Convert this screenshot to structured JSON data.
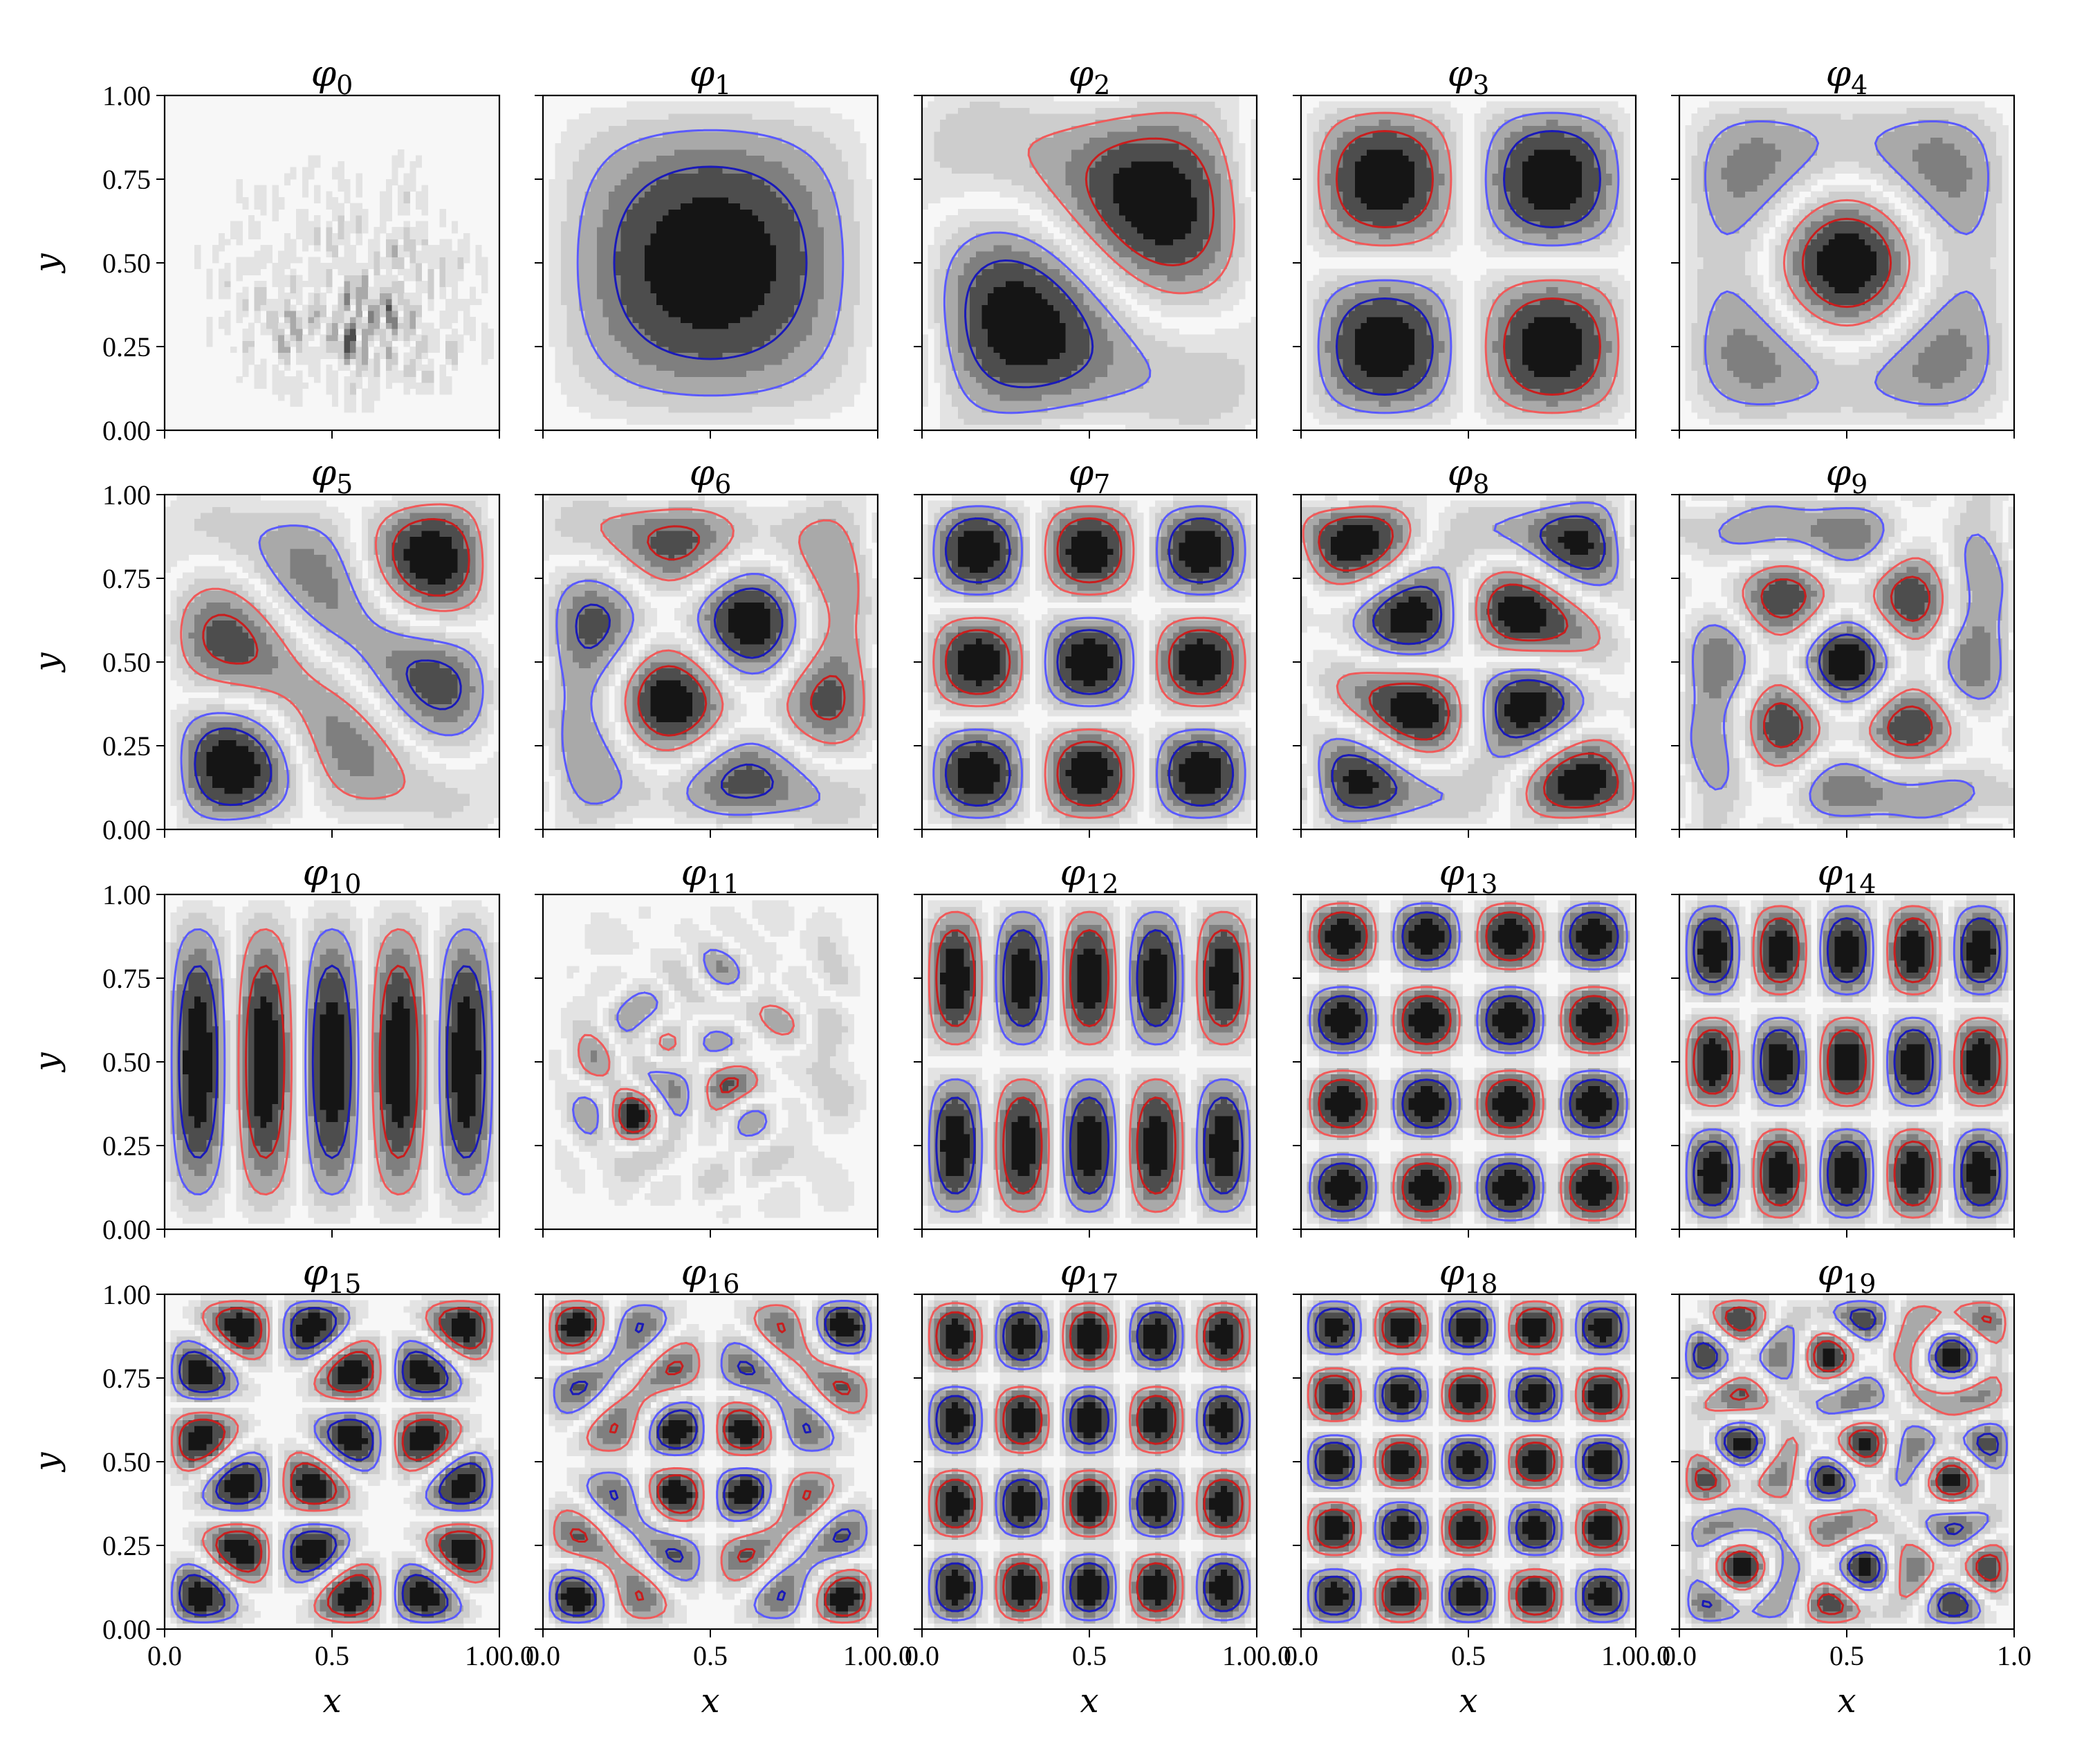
{
  "chart_data": {
    "type": "heatmap",
    "layout": {
      "rows": 4,
      "cols": 5,
      "sharex": true,
      "sharey": true
    },
    "axes": {
      "xlabel": "x",
      "ylabel": "y",
      "xlim": [
        0,
        1
      ],
      "ylim": [
        0,
        1
      ],
      "xticks": [
        0.0,
        0.5,
        1.0
      ],
      "yticks": [
        0.0,
        0.25,
        0.5,
        0.75,
        1.0
      ],
      "xtick_labels_inner": [
        "0.0",
        "0.5",
        "1.00.0"
      ],
      "xtick_labels_last": [
        "0.0",
        "0.5",
        "1.0"
      ],
      "ytick_labels": [
        "0.00",
        "0.25",
        "0.50",
        "0.75",
        "1.00"
      ]
    },
    "colors": {
      "fill_levels": [
        "#f7f7f7",
        "#e3e3e3",
        "#cdcdcd",
        "#a9a9a9",
        "#7f7f7f",
        "#4d4d4d",
        "#151515"
      ],
      "positive_outer": "#5a5aff",
      "positive_inner": "#1a1ab8",
      "negative_outer": "#f05a5a",
      "negative_inner": "#c81e1e"
    },
    "panels": [
      {
        "title": "φ",
        "index": "0",
        "mode": "noise"
      },
      {
        "title": "φ",
        "index": "1",
        "mode": "sine",
        "m": 1,
        "n": 1
      },
      {
        "title": "φ",
        "index": "2",
        "mode": "sine",
        "m": 1,
        "n": 2,
        "blend": 1,
        "shear": 0.25
      },
      {
        "title": "φ",
        "index": "3",
        "mode": "sine",
        "m": 2,
        "n": 2
      },
      {
        "title": "φ",
        "index": "4",
        "mode": "sine",
        "m": 1,
        "n": 3,
        "blend": 1
      },
      {
        "title": "φ",
        "index": "5",
        "mode": "sine",
        "m": 2,
        "n": 3,
        "blend": 1,
        "shear": 0.1
      },
      {
        "title": "φ",
        "index": "6",
        "mode": "sine",
        "m": 1,
        "n": 4,
        "blend": 1,
        "shear": 0.2
      },
      {
        "title": "φ",
        "index": "7",
        "mode": "sine",
        "m": 3,
        "n": 3
      },
      {
        "title": "φ",
        "index": "8",
        "mode": "sine",
        "m": 2,
        "n": 4,
        "blend": 0.6,
        "shear": 0.15
      },
      {
        "title": "φ",
        "index": "9",
        "mode": "sine",
        "m": 1,
        "n": 5,
        "blend": 1,
        "shear": 0.35
      },
      {
        "title": "φ",
        "index": "10",
        "mode": "sine",
        "m": 5,
        "n": 1
      },
      {
        "title": "φ",
        "index": "11",
        "mode": "noise2"
      },
      {
        "title": "φ",
        "index": "12",
        "mode": "sine",
        "m": 5,
        "n": 2
      },
      {
        "title": "φ",
        "index": "13",
        "mode": "sine",
        "m": 4,
        "n": 4
      },
      {
        "title": "φ",
        "index": "14",
        "mode": "sine",
        "m": 5,
        "n": 3
      },
      {
        "title": "φ",
        "index": "15",
        "mode": "sine",
        "m": 3,
        "n": 6,
        "blend": 0.8
      },
      {
        "title": "φ",
        "index": "16",
        "mode": "sine",
        "m": 4,
        "n": 6,
        "blend": 0.9
      },
      {
        "title": "φ",
        "index": "17",
        "mode": "sine",
        "m": 5,
        "n": 4
      },
      {
        "title": "φ",
        "index": "18",
        "mode": "sine",
        "m": 5,
        "n": 5,
        "blend": 0.7
      },
      {
        "title": "φ",
        "index": "19",
        "mode": "sine",
        "m": 3,
        "n": 8,
        "blend": 0.85
      }
    ]
  }
}
